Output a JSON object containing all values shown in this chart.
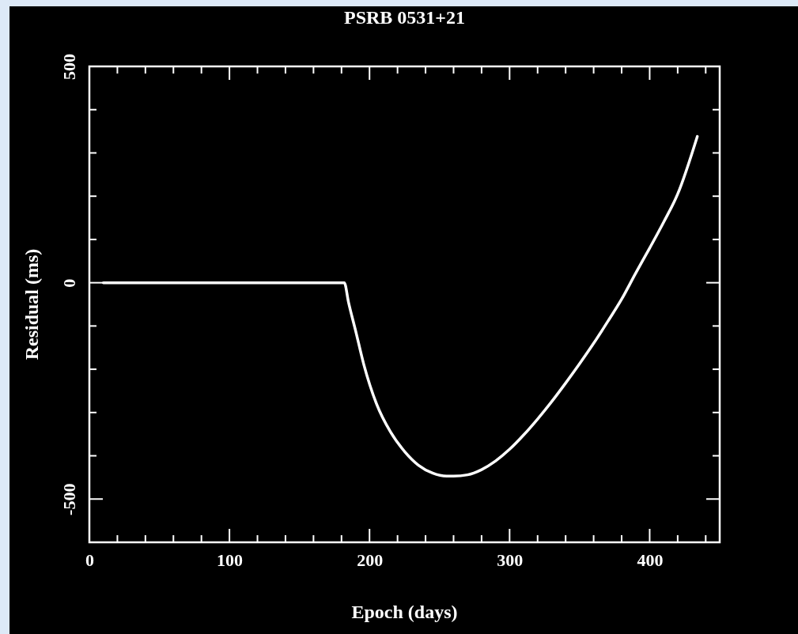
{
  "chart_data": {
    "type": "line",
    "title": "PSRB 0531+21",
    "xlabel": "Epoch (days)",
    "ylabel": "Residual (ms)",
    "xlim": [
      0,
      450
    ],
    "ylim": [
      -600,
      500
    ],
    "xticks": [
      0,
      {
        "value": 20,
        "label": null
      },
      {
        "value": 40,
        "label": null
      },
      {
        "value": 60,
        "label": null
      },
      {
        "value": 80,
        "label": null
      },
      100,
      {
        "value": 120,
        "label": null
      },
      {
        "value": 140,
        "label": null
      },
      {
        "value": 160,
        "label": null
      },
      {
        "value": 180,
        "label": null
      },
      200,
      {
        "value": 220,
        "label": null
      },
      {
        "value": 240,
        "label": null
      },
      {
        "value": 260,
        "label": null
      },
      {
        "value": 280,
        "label": null
      },
      300,
      {
        "value": 320,
        "label": null
      },
      {
        "value": 340,
        "label": null
      },
      {
        "value": 360,
        "label": null
      },
      {
        "value": 380,
        "label": null
      },
      400,
      {
        "value": 420,
        "label": null
      },
      {
        "value": 440,
        "label": null
      }
    ],
    "yticks": [
      {
        "value": -600,
        "label": null
      },
      -500,
      {
        "value": -400,
        "label": null
      },
      {
        "value": -300,
        "label": null
      },
      {
        "value": -200,
        "label": null
      },
      {
        "value": -100,
        "label": null
      },
      0,
      {
        "value": 100,
        "label": null
      },
      {
        "value": 200,
        "label": null
      },
      {
        "value": 300,
        "label": null
      },
      {
        "value": 400,
        "label": null
      },
      500
    ],
    "grid": false,
    "series": [
      {
        "color": "#ffffff",
        "x": [
          10,
          50,
          100,
          150,
          182,
          185,
          190,
          196,
          205,
          215,
          225,
          235,
          245,
          255,
          260,
          270,
          280,
          290,
          300,
          310,
          320,
          330,
          340,
          350,
          360,
          370,
          380,
          390,
          400,
          410,
          420,
          434
        ],
        "values": [
          0,
          0,
          0,
          0,
          0,
          -45,
          -110,
          -190,
          -280,
          -345,
          -390,
          -422,
          -440,
          -447,
          -447,
          -444,
          -432,
          -412,
          -385,
          -352,
          -315,
          -275,
          -232,
          -187,
          -140,
          -90,
          -38,
          22,
          80,
          140,
          205,
          338
        ]
      }
    ]
  }
}
